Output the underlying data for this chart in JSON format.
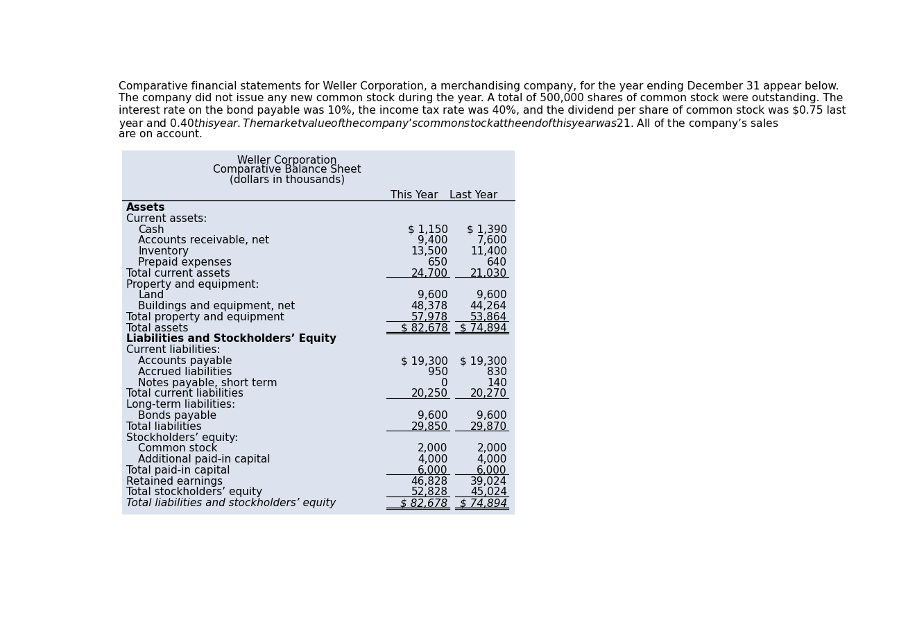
{
  "intro_text_lines": [
    "Comparative financial statements for Weller Corporation, a merchandising company, for the year ending December 31 appear below.",
    "The company did not issue any new common stock during the year. A total of 500,000 shares of common stock were outstanding. The",
    "interest rate on the bond payable was 10%, the income tax rate was 40%, and the dividend per share of common stock was $0.75 last",
    "year and $0.40 this year. The market value of the company’s common stock at the end of this year was $21. All of the company’s sales",
    "are on account."
  ],
  "table_title": [
    "Weller Corporation",
    "Comparative Balance Sheet",
    "(dollars in thousands)"
  ],
  "col_headers": [
    "This Year",
    "Last Year"
  ],
  "background_color": "#dce3ef",
  "rows": [
    {
      "label": "Assets",
      "this_year": "",
      "last_year": "",
      "style": "bold",
      "indent": 0
    },
    {
      "label": "Current assets:",
      "this_year": "",
      "last_year": "",
      "style": "normal",
      "indent": 0
    },
    {
      "label": "Cash",
      "this_year": "$ 1,150",
      "last_year": "$ 1,390",
      "style": "normal",
      "indent": 1
    },
    {
      "label": "Accounts receivable, net",
      "this_year": "9,400",
      "last_year": "7,600",
      "style": "normal",
      "indent": 1
    },
    {
      "label": "Inventory",
      "this_year": "13,500",
      "last_year": "11,400",
      "style": "normal",
      "indent": 1
    },
    {
      "label": "Prepaid expenses",
      "this_year": "650",
      "last_year": "640",
      "style": "normal",
      "indent": 1
    },
    {
      "label": "Total current assets",
      "this_year": "24,700",
      "last_year": "21,030",
      "style": "normal",
      "indent": 0,
      "underline": true
    },
    {
      "label": "Property and equipment:",
      "this_year": "",
      "last_year": "",
      "style": "normal",
      "indent": 0
    },
    {
      "label": "Land",
      "this_year": "9,600",
      "last_year": "9,600",
      "style": "normal",
      "indent": 1
    },
    {
      "label": "Buildings and equipment, net",
      "this_year": "48,378",
      "last_year": "44,264",
      "style": "normal",
      "indent": 1
    },
    {
      "label": "Total property and equipment",
      "this_year": "57,978",
      "last_year": "53,864",
      "style": "normal",
      "indent": 0,
      "underline": true
    },
    {
      "label": "Total assets",
      "this_year": "$ 82,678",
      "last_year": "$ 74,894",
      "style": "normal",
      "indent": 0,
      "double_underline": true
    },
    {
      "label": "Liabilities and Stockholders’ Equity",
      "this_year": "",
      "last_year": "",
      "style": "bold",
      "indent": 0
    },
    {
      "label": "Current liabilities:",
      "this_year": "",
      "last_year": "",
      "style": "normal",
      "indent": 0
    },
    {
      "label": "Accounts payable",
      "this_year": "$ 19,300",
      "last_year": "$ 19,300",
      "style": "normal",
      "indent": 1
    },
    {
      "label": "Accrued liabilities",
      "this_year": "950",
      "last_year": "830",
      "style": "normal",
      "indent": 1
    },
    {
      "label": "Notes payable, short term",
      "this_year": "0",
      "last_year": "140",
      "style": "normal",
      "indent": 1
    },
    {
      "label": "Total current liabilities",
      "this_year": "20,250",
      "last_year": "20,270",
      "style": "normal",
      "indent": 0,
      "underline": true
    },
    {
      "label": "Long-term liabilities:",
      "this_year": "",
      "last_year": "",
      "style": "normal",
      "indent": 0
    },
    {
      "label": "Bonds payable",
      "this_year": "9,600",
      "last_year": "9,600",
      "style": "normal",
      "indent": 1
    },
    {
      "label": "Total liabilities",
      "this_year": "29,850",
      "last_year": "29,870",
      "style": "normal",
      "indent": 0,
      "underline": true
    },
    {
      "label": "Stockholders’ equity:",
      "this_year": "",
      "last_year": "",
      "style": "normal",
      "indent": 0
    },
    {
      "label": "Common stock",
      "this_year": "2,000",
      "last_year": "2,000",
      "style": "normal",
      "indent": 1
    },
    {
      "label": "Additional paid-in capital",
      "this_year": "4,000",
      "last_year": "4,000",
      "style": "normal",
      "indent": 1
    },
    {
      "label": "Total paid-in capital",
      "this_year": "6,000",
      "last_year": "6,000",
      "style": "normal",
      "indent": 0,
      "underline": true
    },
    {
      "label": "Retained earnings",
      "this_year": "46,828",
      "last_year": "39,024",
      "style": "normal",
      "indent": 0
    },
    {
      "label": "Total stockholders’ equity",
      "this_year": "52,828",
      "last_year": "45,024",
      "style": "normal",
      "indent": 0,
      "underline": true
    },
    {
      "label": "Total liabilities and stockholders’ equity",
      "this_year": "$ 82,678",
      "last_year": "$ 74,894",
      "style": "italic",
      "indent": 0,
      "double_underline": true
    }
  ]
}
